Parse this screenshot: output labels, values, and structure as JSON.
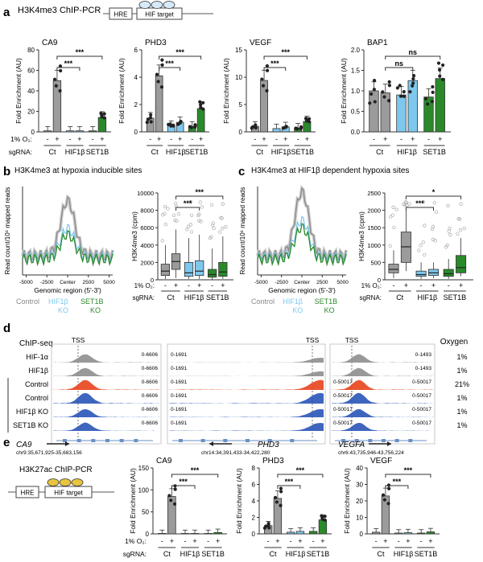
{
  "panels": {
    "a": {
      "letter": "a",
      "title": "H3K4me3 ChIP-PCR",
      "schematic": {
        "hre": "HRE",
        "target": "HIF target"
      },
      "yaxis_label": "Fold Enrichment (AU)",
      "o2_label": "1% O₂:",
      "sgrna_label": "sgRNA:",
      "group_labels": [
        "Ct",
        "HIF1β",
        "SET1B"
      ],
      "charts": [
        {
          "title": "CA9",
          "ylim": [
            0,
            80
          ],
          "ticks": [
            "0",
            "20",
            "40",
            "60",
            "80"
          ],
          "values": [
            1,
            50,
            1,
            1,
            1,
            14
          ],
          "sig": [
            "***",
            "***"
          ],
          "signs": [
            "-",
            "+",
            "-",
            "+",
            "-",
            "+"
          ]
        },
        {
          "title": "PHD3",
          "ylim": [
            0,
            6
          ],
          "ticks": [
            "0",
            "2",
            "4",
            "6"
          ],
          "values": [
            1,
            4.1,
            0.45,
            0.7,
            0.4,
            1.7
          ],
          "sig": [
            "***",
            "***"
          ],
          "signs": [
            "-",
            "+",
            "-",
            "+",
            "-",
            "+"
          ]
        },
        {
          "title": "VEGF",
          "ylim": [
            0,
            15
          ],
          "ticks": [
            "0",
            "5",
            "10",
            "15"
          ],
          "values": [
            1,
            9.4,
            0.6,
            0.9,
            0.7,
            1.9
          ],
          "sig": [
            "***",
            "***"
          ],
          "signs": [
            "-",
            "+",
            "-",
            "+",
            "-",
            "+"
          ]
        },
        {
          "title": "BAP1",
          "ylim": [
            0,
            2.0
          ],
          "ticks": [
            "0.0",
            "0.5",
            "1.0",
            "1.5",
            "2.0"
          ],
          "values": [
            1,
            0.95,
            0.9,
            1.25,
            0.85,
            1.3
          ],
          "sig": [
            "ns",
            "ns"
          ],
          "signs": [
            "-",
            "+",
            "-",
            "+",
            "-",
            "+"
          ]
        }
      ]
    },
    "b": {
      "letter": "b",
      "title": "H3K4me3 at hypoxia inducible sites",
      "profile_ylabel": "Read count/10⁶ mapped reads",
      "profile_xlabel": "Genomic region (5'-3')",
      "profile_xticks": [
        "-5000",
        "-2500",
        "Center",
        "2500",
        "5000"
      ],
      "legend": [
        "Control",
        "HIF1β KO",
        "SET1B KO"
      ],
      "box_ylabel": "H3K4me3 (cpm)",
      "box_yticks": [
        "0",
        "2000",
        "4000",
        "6000",
        "8000",
        "10000"
      ],
      "box_sig": [
        "***",
        "***"
      ],
      "o2_label": "1% O₂:",
      "sgrna_label": "sgRNA:",
      "group_labels": [
        "Ct",
        "HIF1β",
        "SET1B"
      ]
    },
    "c": {
      "letter": "c",
      "title": "H3K4me3 at HIF1β dependent hypoxia sites",
      "profile_ylabel": "Read count/10⁶ mapped reads",
      "profile_xlabel": "Genomic region (5'-3')",
      "profile_xticks": [
        "-5000",
        "-2500",
        "Center",
        "2500",
        "5000"
      ],
      "legend": [
        "Control",
        "HIF1β KO",
        "SET1B KO"
      ],
      "box_ylabel": "H3K4me3 (cpm)",
      "box_yticks": [
        "0",
        "500",
        "1000",
        "1500",
        "2000",
        "2500"
      ],
      "box_sig": [
        "***",
        "*"
      ],
      "o2_label": "1% O₂:",
      "sgrna_label": "sgRNA:",
      "group_labels": [
        "Ct",
        "HIF1β",
        "SET1B"
      ]
    },
    "d": {
      "letter": "d",
      "chipseq_label": "ChIP-seq",
      "oxygen_label": "Oxygen",
      "tss": "TSS",
      "tracks": [
        "HIF-1α",
        "HIF1β",
        "Control",
        "Control",
        "HIF1β KO",
        "SET1B KO"
      ],
      "oxygen": [
        "1%",
        "1%",
        "21%",
        "1%",
        "1%",
        "1%"
      ],
      "ranges": {
        "ca9": [
          "0-6606",
          "0-6606",
          "0-6606",
          "0-6606",
          "0-6606",
          "0-6606"
        ],
        "phd3": [
          "0-1691",
          "0-1691",
          "0-1691",
          "0-1691",
          "0-1691",
          "0-1691"
        ],
        "vegfa_left": [
          "",
          "",
          "0-50017",
          "0-50017",
          "0-50017",
          "0-50017"
        ],
        "vegfa_right": [
          "0-1493",
          "0-1493",
          "0-50017",
          "0-50017",
          "0-50017",
          "0-50017"
        ]
      },
      "genes": [
        {
          "name": "CA9",
          "coord": "chr9:35,671,925-35,683,156"
        },
        {
          "name": "PHD3",
          "coord": "chr14:34,391,433-34,422,280"
        },
        {
          "name": "VEGFA",
          "coord": "chr6:43,735,946-43,756,224"
        }
      ]
    },
    "e": {
      "letter": "e",
      "title": "H3K27ac ChIP-PCR",
      "schematic": {
        "hre": "HRE",
        "target": "HIF target"
      },
      "yaxis_label": "Fold Enrichment (AU)",
      "o2_label": "1% O₂:",
      "sgrna_label": "sgRNA:",
      "group_labels": [
        "Ct",
        "HIF1β",
        "SET1B"
      ],
      "charts": [
        {
          "title": "CA9",
          "ylim": [
            0,
            150
          ],
          "ticks": [
            "0",
            "50",
            "100",
            "150"
          ],
          "values": [
            1,
            85,
            1,
            1,
            1,
            3
          ],
          "sig": [
            "***",
            "***"
          ],
          "signs": [
            "-",
            "+",
            "-",
            "+",
            "-",
            "+"
          ]
        },
        {
          "title": "PHD3",
          "ylim": [
            0,
            8
          ],
          "ticks": [
            "0",
            "2",
            "4",
            "6",
            "8"
          ],
          "values": [
            1,
            4.3,
            0.2,
            0.3,
            0.3,
            1.7
          ],
          "sig": [
            "***",
            "***"
          ],
          "signs": [
            "-",
            "+",
            "-",
            "+",
            "-",
            "+"
          ]
        },
        {
          "title": "VEGF",
          "ylim": [
            0,
            40
          ],
          "ticks": [
            "0",
            "10",
            "20",
            "30",
            "40"
          ],
          "values": [
            1,
            23,
            0.5,
            0.7,
            0.5,
            1.2
          ],
          "sig": [
            "***",
            "***"
          ],
          "signs": [
            "-",
            "+",
            "-",
            "+",
            "-",
            "+"
          ]
        }
      ]
    }
  },
  "colors": {
    "ct": "#9b9b9b",
    "hif": "#7ec8ee",
    "set1b": "#2a8a2a",
    "signal_blue": "#2a55b8",
    "signal_red": "#e8421c",
    "signal_gray": "#8e8e8e"
  },
  "chart_data": [
    {
      "type": "bar",
      "title": "CA9 (H3K4me3)",
      "categories": [
        "Ct -",
        "Ct +",
        "HIF1β -",
        "HIF1β +",
        "SET1B -",
        "SET1B +"
      ],
      "values": [
        1,
        50,
        1,
        1,
        1,
        14
      ],
      "ylabel": "Fold Enrichment (AU)",
      "ylim": [
        0,
        80
      ]
    },
    {
      "type": "bar",
      "title": "PHD3 (H3K4me3)",
      "categories": [
        "Ct -",
        "Ct +",
        "HIF1β -",
        "HIF1β +",
        "SET1B -",
        "SET1B +"
      ],
      "values": [
        1,
        4.1,
        0.45,
        0.7,
        0.4,
        1.7
      ],
      "ylabel": "Fold Enrichment (AU)",
      "ylim": [
        0,
        6
      ]
    },
    {
      "type": "bar",
      "title": "VEGF (H3K4me3)",
      "categories": [
        "Ct -",
        "Ct +",
        "HIF1β -",
        "HIF1β +",
        "SET1B -",
        "SET1B +"
      ],
      "values": [
        1,
        9.4,
        0.6,
        0.9,
        0.7,
        1.9
      ],
      "ylabel": "Fold Enrichment (AU)",
      "ylim": [
        0,
        15
      ]
    },
    {
      "type": "bar",
      "title": "BAP1 (H3K4me3)",
      "categories": [
        "Ct -",
        "Ct +",
        "HIF1β -",
        "HIF1β +",
        "SET1B -",
        "SET1B +"
      ],
      "values": [
        1,
        0.95,
        0.9,
        1.25,
        0.85,
        1.3
      ],
      "ylabel": "Fold Enrichment (AU)",
      "ylim": [
        0,
        2
      ]
    },
    {
      "type": "bar",
      "title": "CA9 (H3K27ac)",
      "categories": [
        "Ct -",
        "Ct +",
        "HIF1β -",
        "HIF1β +",
        "SET1B -",
        "SET1B +"
      ],
      "values": [
        1,
        85,
        1,
        1,
        1,
        3
      ],
      "ylabel": "Fold Enrichment (AU)",
      "ylim": [
        0,
        150
      ]
    },
    {
      "type": "bar",
      "title": "PHD3 (H3K27ac)",
      "categories": [
        "Ct -",
        "Ct +",
        "HIF1β -",
        "HIF1β +",
        "SET1B -",
        "SET1B +"
      ],
      "values": [
        1,
        4.3,
        0.2,
        0.3,
        0.3,
        1.7
      ],
      "ylabel": "Fold Enrichment (AU)",
      "ylim": [
        0,
        8
      ]
    },
    {
      "type": "bar",
      "title": "VEGF (H3K27ac)",
      "categories": [
        "Ct -",
        "Ct +",
        "HIF1β -",
        "HIF1β +",
        "SET1B -",
        "SET1B +"
      ],
      "values": [
        1,
        23,
        0.5,
        0.7,
        0.5,
        1.2
      ],
      "ylabel": "Fold Enrichment (AU)",
      "ylim": [
        0,
        40
      ]
    }
  ]
}
